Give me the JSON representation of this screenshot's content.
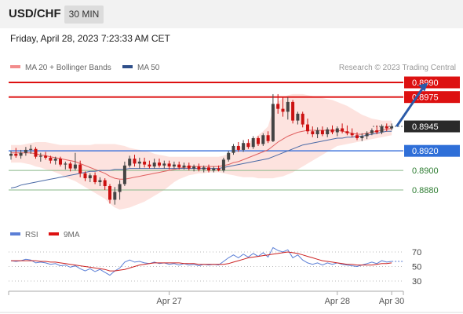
{
  "header": {
    "symbol": "USD/CHF",
    "timeframe": "30 MIN"
  },
  "timestamp": "Friday, April 28, 2023 7:23:33 AM CET",
  "legend": {
    "ma20_label": "MA 20 + Bollinger Bands",
    "ma50_label": "MA 50",
    "credit": "Research © 2023 Trading Central"
  },
  "rsi_legend": {
    "rsi_label": "RSI",
    "ma_label": "9MA"
  },
  "colors": {
    "bull_candle": "#444444",
    "bear_candle": "#cc1111",
    "resistance": "#dd1111",
    "support": "#4477dd",
    "target_green": "#2e7d32",
    "ma20": "#e06060",
    "ma50": "#4a6aa6",
    "band_fill": "#fde0dc",
    "rsi": "#5b7fd6",
    "rsi_ma": "#cc2222",
    "arrow": "#2a5aa8"
  },
  "chart_data": [
    {
      "type": "candlestick",
      "instrument": "USD/CHF",
      "ylim": [
        0.8835,
        0.8995
      ],
      "levels": [
        {
          "value": 0.899,
          "label": "0.8990",
          "kind": "resistance"
        },
        {
          "value": 0.8975,
          "label": "0.8975",
          "kind": "resistance"
        },
        {
          "value": 0.8945,
          "label": "0.8945",
          "kind": "last"
        },
        {
          "value": 0.892,
          "label": "0.8920",
          "kind": "pivot"
        },
        {
          "value": 0.89,
          "label": "0.8900",
          "kind": "support"
        },
        {
          "value": 0.888,
          "label": "0.8880",
          "kind": "support"
        }
      ],
      "x_ticks": [
        {
          "index": 32,
          "label": "Apr 27"
        },
        {
          "index": 66,
          "label": "Apr 28"
        },
        {
          "index": 77,
          "label": "Apr 30"
        }
      ],
      "candles": [
        [
          0.8915,
          0.892,
          0.8911,
          0.8917
        ],
        [
          0.8917,
          0.8923,
          0.8913,
          0.8915
        ],
        [
          0.8915,
          0.8921,
          0.8912,
          0.8918
        ],
        [
          0.8918,
          0.8924,
          0.8915,
          0.8921
        ],
        [
          0.8921,
          0.8926,
          0.8917,
          0.8922
        ],
        [
          0.8922,
          0.8924,
          0.8912,
          0.8914
        ],
        [
          0.8914,
          0.8918,
          0.8909,
          0.8915
        ],
        [
          0.8915,
          0.8919,
          0.8911,
          0.8913
        ],
        [
          0.8913,
          0.8915,
          0.8907,
          0.891
        ],
        [
          0.891,
          0.8914,
          0.8906,
          0.8912
        ],
        [
          0.8912,
          0.8914,
          0.8904,
          0.8906
        ],
        [
          0.8906,
          0.8909,
          0.8901,
          0.8907
        ],
        [
          0.8907,
          0.8909,
          0.8899,
          0.8902
        ],
        [
          0.8902,
          0.8918,
          0.89,
          0.8906
        ],
        [
          0.8906,
          0.891,
          0.8893,
          0.8897
        ],
        [
          0.8897,
          0.8899,
          0.8889,
          0.8892
        ],
        [
          0.8892,
          0.8897,
          0.8888,
          0.8895
        ],
        [
          0.8895,
          0.8898,
          0.8886,
          0.8888
        ],
        [
          0.8888,
          0.8893,
          0.8884,
          0.889
        ],
        [
          0.889,
          0.8892,
          0.888,
          0.8884
        ],
        [
          0.8884,
          0.8886,
          0.8866,
          0.887
        ],
        [
          0.887,
          0.8883,
          0.8865,
          0.8878
        ],
        [
          0.8878,
          0.889,
          0.887,
          0.8886
        ],
        [
          0.8886,
          0.8909,
          0.8884,
          0.8905
        ],
        [
          0.8905,
          0.8915,
          0.8903,
          0.8912
        ],
        [
          0.8912,
          0.8916,
          0.8904,
          0.8907
        ],
        [
          0.8907,
          0.8913,
          0.8902,
          0.8909
        ],
        [
          0.8909,
          0.8913,
          0.8903,
          0.8906
        ],
        [
          0.8906,
          0.891,
          0.8902,
          0.8904
        ],
        [
          0.8904,
          0.8912,
          0.8902,
          0.8908
        ],
        [
          0.8908,
          0.8912,
          0.8903,
          0.8905
        ],
        [
          0.8905,
          0.891,
          0.8902,
          0.8907
        ],
        [
          0.8907,
          0.891,
          0.8901,
          0.8904
        ],
        [
          0.8904,
          0.8909,
          0.8902,
          0.8906
        ],
        [
          0.8906,
          0.8909,
          0.8901,
          0.8903
        ],
        [
          0.8903,
          0.8908,
          0.8901,
          0.8905
        ],
        [
          0.8905,
          0.8908,
          0.89,
          0.8902
        ],
        [
          0.8902,
          0.8906,
          0.8899,
          0.8904
        ],
        [
          0.8904,
          0.8907,
          0.8899,
          0.8901
        ],
        [
          0.8901,
          0.8905,
          0.8898,
          0.8903
        ],
        [
          0.8903,
          0.8906,
          0.8898,
          0.89
        ],
        [
          0.89,
          0.8904,
          0.8898,
          0.8902
        ],
        [
          0.8902,
          0.8905,
          0.8899,
          0.89
        ],
        [
          0.89,
          0.8913,
          0.8898,
          0.8911
        ],
        [
          0.8911,
          0.892,
          0.8909,
          0.8918
        ],
        [
          0.8918,
          0.8927,
          0.8916,
          0.8925
        ],
        [
          0.8925,
          0.8929,
          0.8919,
          0.8921
        ],
        [
          0.8921,
          0.8931,
          0.8919,
          0.8928
        ],
        [
          0.8928,
          0.8932,
          0.8922,
          0.8924
        ],
        [
          0.8924,
          0.8935,
          0.8922,
          0.8933
        ],
        [
          0.8933,
          0.8935,
          0.8925,
          0.8927
        ],
        [
          0.8927,
          0.8938,
          0.8925,
          0.8936
        ],
        [
          0.8936,
          0.894,
          0.8928,
          0.893
        ],
        [
          0.893,
          0.8978,
          0.8929,
          0.8968
        ],
        [
          0.8968,
          0.8978,
          0.8958,
          0.8963
        ],
        [
          0.8963,
          0.8975,
          0.8955,
          0.896
        ],
        [
          0.896,
          0.8975,
          0.8952,
          0.897
        ],
        [
          0.897,
          0.8972,
          0.8948,
          0.8951
        ],
        [
          0.8951,
          0.896,
          0.8947,
          0.8958
        ],
        [
          0.8958,
          0.896,
          0.8944,
          0.8947
        ],
        [
          0.8947,
          0.8953,
          0.8937,
          0.894
        ],
        [
          0.894,
          0.8945,
          0.8934,
          0.8937
        ],
        [
          0.8937,
          0.8944,
          0.8933,
          0.8941
        ],
        [
          0.8941,
          0.8945,
          0.8935,
          0.8937
        ],
        [
          0.8937,
          0.8944,
          0.8934,
          0.8942
        ],
        [
          0.8942,
          0.8946,
          0.8937,
          0.8939
        ],
        [
          0.8939,
          0.8945,
          0.8935,
          0.8943
        ],
        [
          0.8943,
          0.8948,
          0.8938,
          0.894
        ],
        [
          0.894,
          0.8946,
          0.8936,
          0.8938
        ],
        [
          0.8938,
          0.8943,
          0.8934,
          0.8936
        ],
        [
          0.8936,
          0.8939,
          0.8931,
          0.8933
        ],
        [
          0.8933,
          0.8938,
          0.893,
          0.8935
        ],
        [
          0.8935,
          0.894,
          0.8932,
          0.8938
        ],
        [
          0.8938,
          0.8943,
          0.8936,
          0.8941
        ],
        [
          0.8941,
          0.8946,
          0.8937,
          0.8939
        ],
        [
          0.8939,
          0.8947,
          0.8937,
          0.8945
        ],
        [
          0.8945,
          0.8948,
          0.894,
          0.8943
        ],
        [
          0.8943,
          0.8948,
          0.8941,
          0.8945
        ]
      ],
      "ma20": [
        0.8918,
        0.8918,
        0.8918,
        0.8918,
        0.8918,
        0.8917,
        0.8916,
        0.8915,
        0.8914,
        0.8913,
        0.8912,
        0.8911,
        0.891,
        0.8909,
        0.8907,
        0.8905,
        0.8903,
        0.8901,
        0.8899,
        0.8897,
        0.8894,
        0.8892,
        0.8891,
        0.8891,
        0.8892,
        0.8893,
        0.8894,
        0.8895,
        0.8896,
        0.8897,
        0.8898,
        0.8899,
        0.89,
        0.8901,
        0.8902,
        0.8903,
        0.8904,
        0.8904,
        0.8904,
        0.8904,
        0.8904,
        0.8904,
        0.8904,
        0.8905,
        0.8906,
        0.8908,
        0.8909,
        0.8911,
        0.8913,
        0.8915,
        0.8917,
        0.8919,
        0.8921,
        0.8925,
        0.8929,
        0.8932,
        0.8935,
        0.8937,
        0.8939,
        0.894,
        0.8941,
        0.8941,
        0.8941,
        0.8941,
        0.8941,
        0.8941,
        0.8941,
        0.894,
        0.8939,
        0.8938,
        0.8937,
        0.8937,
        0.8938,
        0.8939,
        0.894,
        0.8941,
        0.8942,
        0.8943
      ],
      "ma50": [
        0.8882,
        0.8883,
        0.8885,
        0.8886,
        0.8887,
        0.8888,
        0.8889,
        0.889,
        0.8891,
        0.8892,
        0.8893,
        0.8894,
        0.8895,
        0.8896,
        0.8897,
        0.8898,
        0.8899,
        0.8899,
        0.89,
        0.89,
        0.89,
        0.8901,
        0.8901,
        0.8901,
        0.8902,
        0.8902,
        0.8902,
        0.8902,
        0.8902,
        0.8902,
        0.8902,
        0.8902,
        0.8902,
        0.8902,
        0.8902,
        0.8902,
        0.8902,
        0.8902,
        0.8902,
        0.8902,
        0.8902,
        0.8902,
        0.8902,
        0.8903,
        0.8904,
        0.8905,
        0.8906,
        0.8907,
        0.8908,
        0.8909,
        0.891,
        0.8911,
        0.8912,
        0.8914,
        0.8916,
        0.8918,
        0.892,
        0.8922,
        0.8924,
        0.8926,
        0.8927,
        0.8928,
        0.8929,
        0.893,
        0.8931,
        0.8932,
        0.8933,
        0.8933,
        0.8934,
        0.8934,
        0.8935,
        0.8935,
        0.8936,
        0.8937,
        0.8938,
        0.8939,
        0.894,
        0.894
      ],
      "bb_upper": [
        0.8926,
        0.8926,
        0.8926,
        0.8927,
        0.8928,
        0.8929,
        0.8929,
        0.8929,
        0.8928,
        0.8927,
        0.8926,
        0.8926,
        0.8926,
        0.8926,
        0.8926,
        0.8926,
        0.8926,
        0.8927,
        0.8927,
        0.8927,
        0.8927,
        0.8927,
        0.8926,
        0.8925,
        0.8923,
        0.8922,
        0.8921,
        0.892,
        0.8919,
        0.8917,
        0.8916,
        0.8915,
        0.8914,
        0.8914,
        0.8914,
        0.8914,
        0.8914,
        0.8914,
        0.8914,
        0.8914,
        0.8914,
        0.8914,
        0.8914,
        0.8915,
        0.8917,
        0.892,
        0.8923,
        0.8926,
        0.8929,
        0.8932,
        0.8936,
        0.894,
        0.8945,
        0.8962,
        0.897,
        0.8974,
        0.8977,
        0.8978,
        0.8978,
        0.8978,
        0.8977,
        0.8976,
        0.8975,
        0.8974,
        0.8973,
        0.8972,
        0.897,
        0.8968,
        0.8966,
        0.8963,
        0.896,
        0.8957,
        0.8955,
        0.8953,
        0.8952,
        0.8951,
        0.8951,
        0.8951
      ],
      "bb_lower": [
        0.8908,
        0.8908,
        0.8908,
        0.8907,
        0.8906,
        0.8904,
        0.8903,
        0.8901,
        0.89,
        0.8898,
        0.8896,
        0.8893,
        0.8891,
        0.8889,
        0.8886,
        0.8883,
        0.888,
        0.8877,
        0.8874,
        0.8871,
        0.8866,
        0.8862,
        0.886,
        0.8861,
        0.8862,
        0.8864,
        0.8866,
        0.8868,
        0.8871,
        0.8874,
        0.8877,
        0.888,
        0.8884,
        0.8888,
        0.8891,
        0.8893,
        0.8895,
        0.8896,
        0.8897,
        0.8897,
        0.8898,
        0.8898,
        0.8898,
        0.8897,
        0.8896,
        0.8895,
        0.8894,
        0.8893,
        0.8893,
        0.8893,
        0.8892,
        0.8892,
        0.8892,
        0.8892,
        0.8893,
        0.8894,
        0.8896,
        0.8898,
        0.8901,
        0.8904,
        0.8907,
        0.891,
        0.8913,
        0.8916,
        0.8919,
        0.8922,
        0.8925,
        0.8926,
        0.8927,
        0.8928,
        0.8929,
        0.893,
        0.8931,
        0.8932,
        0.8933,
        0.8934,
        0.8935,
        0.8936
      ],
      "arrow": {
        "from": [
          78,
          0.8945
        ],
        "to": [
          84,
          0.8988
        ]
      }
    },
    {
      "type": "line",
      "panel": "RSI",
      "ylim": [
        20,
        80
      ],
      "y_ticks": [
        70,
        50,
        30
      ],
      "reference_levels": [
        70,
        50,
        30
      ],
      "series": [
        {
          "name": "RSI",
          "values": [
            58,
            57,
            58,
            60,
            59,
            55,
            56,
            55,
            53,
            54,
            51,
            52,
            49,
            51,
            47,
            44,
            47,
            43,
            46,
            42,
            38,
            44,
            48,
            56,
            59,
            56,
            57,
            55,
            54,
            56,
            54,
            55,
            53,
            54,
            52,
            54,
            52,
            53,
            51,
            53,
            52,
            53,
            52,
            57,
            62,
            66,
            62,
            67,
            63,
            68,
            64,
            69,
            63,
            76,
            72,
            70,
            73,
            62,
            66,
            59,
            55,
            53,
            55,
            52,
            55,
            53,
            55,
            53,
            52,
            51,
            50,
            52,
            54,
            56,
            54,
            58,
            56,
            57
          ]
        },
        {
          "name": "9MA",
          "values": [
            58,
            58,
            58,
            58,
            58,
            58,
            57,
            57,
            56,
            56,
            55,
            54,
            53,
            52,
            51,
            50,
            49,
            48,
            47,
            46,
            44,
            44,
            45,
            46,
            48,
            50,
            52,
            53,
            54,
            55,
            55,
            55,
            55,
            55,
            55,
            54,
            54,
            54,
            53,
            53,
            53,
            53,
            53,
            53,
            54,
            56,
            58,
            60,
            62,
            63,
            64,
            65,
            66,
            67,
            68,
            69,
            70,
            69,
            68,
            66,
            64,
            62,
            60,
            58,
            57,
            56,
            55,
            54,
            53,
            53,
            52,
            52,
            52,
            52,
            53,
            54,
            54,
            55
          ]
        }
      ]
    }
  ]
}
